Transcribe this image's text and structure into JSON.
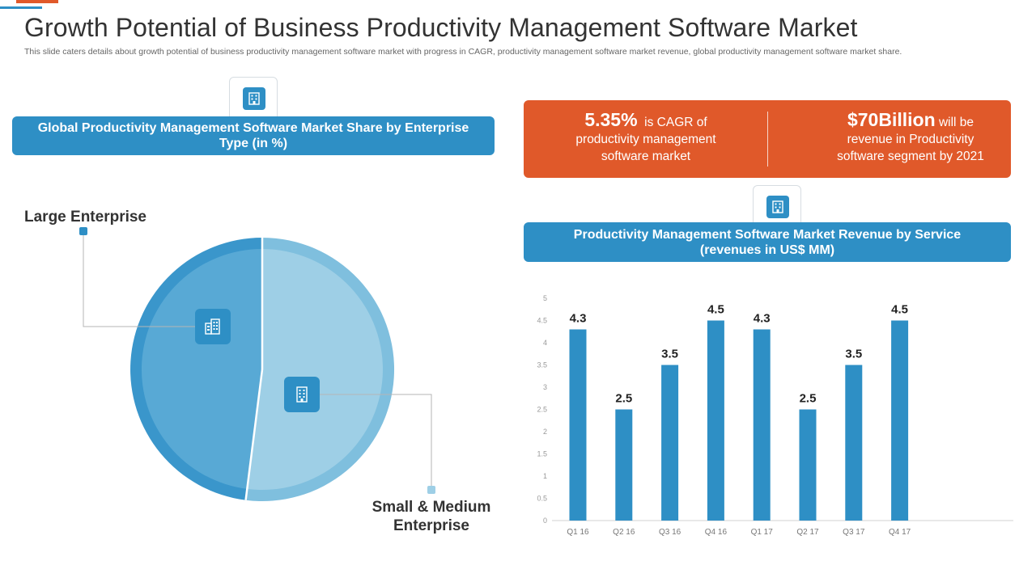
{
  "header": {
    "title": "Growth Potential of Business Productivity Management Software Market",
    "subtitle": "This slide caters details about growth potential of business productivity management software market with progress in CAGR, productivity management software market revenue, global productivity management software market share."
  },
  "pie_section": {
    "banner": "Global Productivity Management Software Market Share by Enterprise Type (in %)",
    "labels": {
      "large": "Large Enterprise",
      "small_line1": "Small & Medium",
      "small_line2": "Enterprise"
    },
    "slices": [
      {
        "name": "Large Enterprise",
        "value": 48
      },
      {
        "name": "Small & Medium Enterprise",
        "value": 52
      }
    ],
    "colors": {
      "large": "#58a9d5",
      "large_rim": "#3a96cb",
      "small": "#9ecfe6",
      "small_rim": "#7fbfde"
    }
  },
  "stats": {
    "cagr": {
      "value": "5.35%",
      "line1_rest": "is CAGR of",
      "line2": "productivity management",
      "line3": "software market"
    },
    "revenue": {
      "value": "$70Billion",
      "line1_rest": "will be",
      "line2": "revenue in Productivity",
      "line3": "software segment by 2021"
    }
  },
  "bar_section": {
    "banner_line1": "Productivity Management Software Market Revenue by Service",
    "banner_line2": "(revenues in US$ MM)"
  },
  "chart_data": {
    "type": "bar",
    "title": "Productivity Management Software Market Revenue by Service (revenues in US$ MM)",
    "categories": [
      "Q1 16",
      "Q2 16",
      "Q3 16",
      "Q4 16",
      "Q1 17",
      "Q2 17",
      "Q3 17",
      "Q4 17"
    ],
    "values": [
      4.3,
      2.5,
      3.5,
      4.5,
      4.3,
      2.5,
      3.5,
      4.5
    ],
    "ylim": [
      0,
      5
    ],
    "yticks": [
      "0",
      "0.5",
      "1",
      "1.5",
      "2",
      "2.5",
      "3",
      "3.5",
      "4",
      "4.5",
      "5"
    ],
    "xlabel": "",
    "ylabel": "",
    "color": "#2e8fc5"
  },
  "icons": {
    "top_left": "building-icon",
    "top_right": "building-icon",
    "pie_large": "office-buildings-icon",
    "pie_small": "office-building-icon"
  }
}
